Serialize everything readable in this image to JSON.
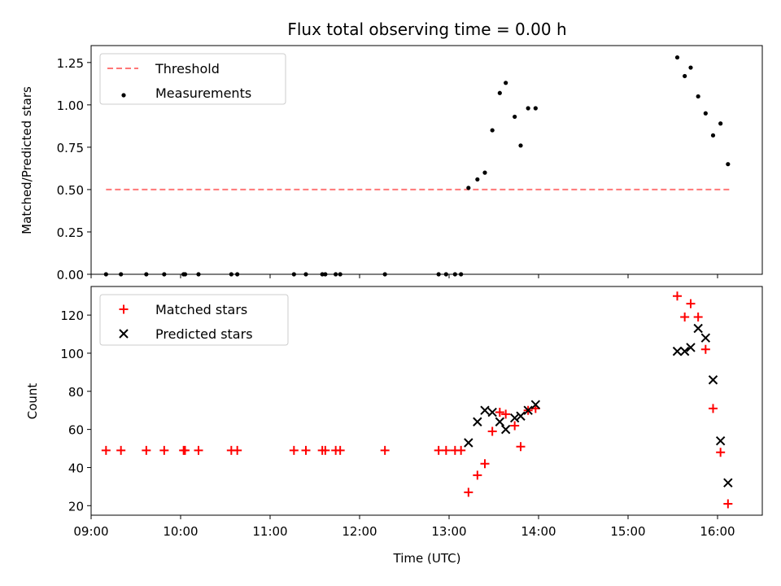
{
  "chart_data": [
    {
      "type": "scatter",
      "title": "Flux total observing time = 0.00 h",
      "xlabel": "",
      "ylabel": "Matched/Predicted stars",
      "xlim": [
        "09:00",
        "16:30"
      ],
      "ylim": [
        0,
        1.35
      ],
      "y_ticks": [
        0.0,
        0.25,
        0.5,
        0.75,
        1.0,
        1.25
      ],
      "y_tick_labels": [
        "0.00",
        "0.25",
        "0.50",
        "0.75",
        "1.00",
        "1.25"
      ],
      "grid": false,
      "legend_position": "upper left",
      "series": [
        {
          "name": "Threshold",
          "kind": "dashed-line",
          "color": "#ff7777",
          "points": [
            [
              "09:10",
              0.5
            ],
            [
              "16:09",
              0.5
            ]
          ]
        },
        {
          "name": "Measurements",
          "kind": "dot",
          "color": "#000000",
          "points": [
            [
              "09:10",
              0.0
            ],
            [
              "09:20",
              0.0
            ],
            [
              "09:37",
              0.0
            ],
            [
              "09:49",
              0.0
            ],
            [
              "10:02",
              0.0
            ],
            [
              "10:03",
              0.0
            ],
            [
              "10:12",
              0.0
            ],
            [
              "10:34",
              0.0
            ],
            [
              "10:38",
              0.0
            ],
            [
              "11:16",
              0.0
            ],
            [
              "11:24",
              0.0
            ],
            [
              "11:35",
              0.0
            ],
            [
              "11:37",
              0.0
            ],
            [
              "11:44",
              0.0
            ],
            [
              "11:47",
              0.0
            ],
            [
              "12:17",
              0.0
            ],
            [
              "12:53",
              0.0
            ],
            [
              "12:58",
              0.0
            ],
            [
              "13:04",
              0.0
            ],
            [
              "13:08",
              0.0
            ],
            [
              "13:13",
              0.51
            ],
            [
              "13:19",
              0.56
            ],
            [
              "13:24",
              0.6
            ],
            [
              "13:29",
              0.85
            ],
            [
              "13:34",
              1.07
            ],
            [
              "13:38",
              1.13
            ],
            [
              "13:44",
              0.93
            ],
            [
              "13:48",
              0.76
            ],
            [
              "13:53",
              0.98
            ],
            [
              "13:58",
              0.98
            ],
            [
              "15:33",
              1.28
            ],
            [
              "15:38",
              1.17
            ],
            [
              "15:42",
              1.22
            ],
            [
              "15:47",
              1.05
            ],
            [
              "15:52",
              0.95
            ],
            [
              "15:57",
              0.82
            ],
            [
              "16:02",
              0.89
            ],
            [
              "16:07",
              0.65
            ]
          ]
        }
      ]
    },
    {
      "type": "scatter",
      "title": "",
      "xlabel": "Time (UTC)",
      "ylabel": "Count",
      "xlim": [
        "09:00",
        "16:30"
      ],
      "ylim": [
        15,
        135
      ],
      "x_ticks": [
        "09:00",
        "10:00",
        "11:00",
        "12:00",
        "13:00",
        "14:00",
        "15:00",
        "16:00"
      ],
      "y_ticks": [
        20,
        40,
        60,
        80,
        100,
        120
      ],
      "grid": false,
      "legend_position": "upper left",
      "series": [
        {
          "name": "Matched stars",
          "marker": "+",
          "color": "#ff0000",
          "points": [
            [
              "09:10",
              49
            ],
            [
              "09:20",
              49
            ],
            [
              "09:37",
              49
            ],
            [
              "09:49",
              49
            ],
            [
              "10:02",
              49
            ],
            [
              "10:03",
              49
            ],
            [
              "10:12",
              49
            ],
            [
              "10:34",
              49
            ],
            [
              "10:38",
              49
            ],
            [
              "11:16",
              49
            ],
            [
              "11:24",
              49
            ],
            [
              "11:35",
              49
            ],
            [
              "11:37",
              49
            ],
            [
              "11:44",
              49
            ],
            [
              "11:47",
              49
            ],
            [
              "12:17",
              49
            ],
            [
              "12:53",
              49
            ],
            [
              "12:58",
              49
            ],
            [
              "13:04",
              49
            ],
            [
              "13:08",
              49
            ],
            [
              "13:13",
              27
            ],
            [
              "13:19",
              36
            ],
            [
              "13:24",
              42
            ],
            [
              "13:29",
              59
            ],
            [
              "13:34",
              69
            ],
            [
              "13:38",
              68
            ],
            [
              "13:44",
              62
            ],
            [
              "13:48",
              51
            ],
            [
              "13:53",
              70
            ],
            [
              "13:58",
              71
            ],
            [
              "15:33",
              130
            ],
            [
              "15:38",
              119
            ],
            [
              "15:42",
              126
            ],
            [
              "15:47",
              119
            ],
            [
              "15:52",
              102
            ],
            [
              "15:57",
              71
            ],
            [
              "16:02",
              48
            ],
            [
              "16:07",
              21
            ]
          ]
        },
        {
          "name": "Predicted stars",
          "marker": "x",
          "color": "#000000",
          "points": [
            [
              "13:13",
              53
            ],
            [
              "13:19",
              64
            ],
            [
              "13:24",
              70
            ],
            [
              "13:29",
              69
            ],
            [
              "13:34",
              64
            ],
            [
              "13:38",
              60
            ],
            [
              "13:44",
              66
            ],
            [
              "13:48",
              67
            ],
            [
              "13:53",
              70
            ],
            [
              "13:58",
              73
            ],
            [
              "15:33",
              101
            ],
            [
              "15:38",
              101
            ],
            [
              "15:42",
              103
            ],
            [
              "15:47",
              113
            ],
            [
              "15:52",
              108
            ],
            [
              "15:57",
              86
            ],
            [
              "16:02",
              54
            ],
            [
              "16:07",
              32
            ]
          ]
        }
      ]
    }
  ]
}
